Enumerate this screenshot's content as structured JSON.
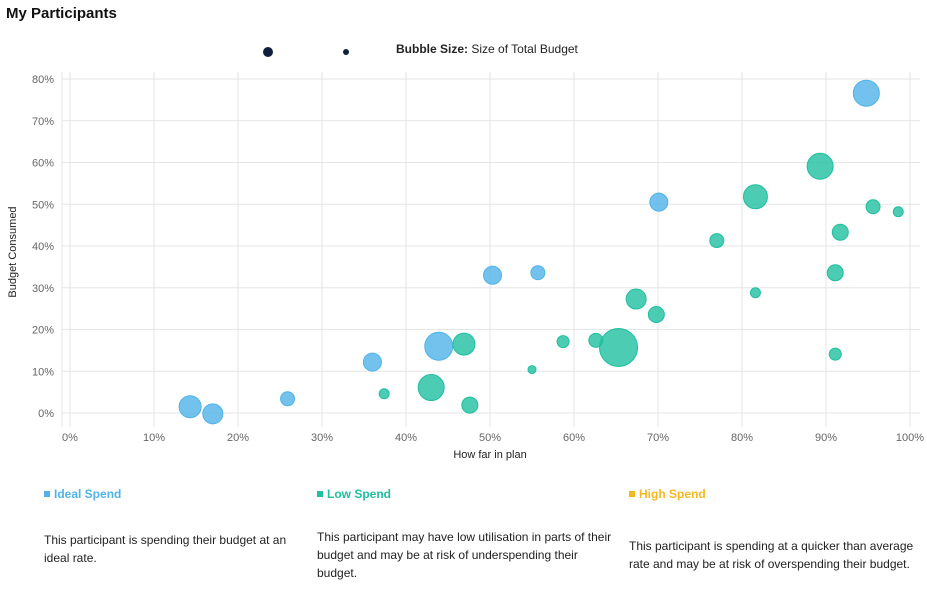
{
  "page": {
    "title": "My Participants"
  },
  "bubble_legend": {
    "label_bold": "Bubble Size:",
    "label_text": "Size of Total Budget"
  },
  "categories": [
    {
      "label": "Ideal Spend",
      "color": "#4fb3e8",
      "description": "This participant is spending their budget at an ideal rate."
    },
    {
      "label": "Low Spend",
      "color": "#1fbf9f",
      "description": "This participant may have low utilisation in parts of their budget and may be at risk of underspending their budget."
    },
    {
      "label": "High Spend",
      "color": "#f5b820",
      "description": "This participant is spending at a quicker than average rate and may be at risk of overspending their budget."
    }
  ],
  "chart_data": {
    "type": "scatter",
    "subtype": "bubble",
    "xlabel": "How far in plan",
    "ylabel": "Budget Consumed",
    "xlim": [
      0,
      100
    ],
    "ylim": [
      0,
      80
    ],
    "x_ticks": [
      "0%",
      "10%",
      "20%",
      "30%",
      "40%",
      "50%",
      "60%",
      "70%",
      "80%",
      "90%",
      "100%"
    ],
    "y_ticks": [
      "0%",
      "10%",
      "20%",
      "30%",
      "40%",
      "50%",
      "60%",
      "70%",
      "80%"
    ],
    "grid": true,
    "series": [
      {
        "name": "Ideal Spend",
        "color": "#4fb3e8",
        "points": [
          {
            "x": 14.3,
            "y": 1.5,
            "size": 11
          },
          {
            "x": 17.0,
            "y": -0.2,
            "size": 10
          },
          {
            "x": 25.9,
            "y": 3.4,
            "size": 7
          },
          {
            "x": 36.0,
            "y": 12.2,
            "size": 9
          },
          {
            "x": 43.9,
            "y": 16.0,
            "size": 14
          },
          {
            "x": 50.3,
            "y": 33.0,
            "size": 9
          },
          {
            "x": 55.7,
            "y": 33.6,
            "size": 7
          },
          {
            "x": 70.1,
            "y": 50.5,
            "size": 9
          },
          {
            "x": 94.8,
            "y": 76.6,
            "size": 13
          }
        ]
      },
      {
        "name": "Low Spend",
        "color": "#1fbf9f",
        "points": [
          {
            "x": 37.4,
            "y": 4.6,
            "size": 5
          },
          {
            "x": 43.0,
            "y": 6.1,
            "size": 13
          },
          {
            "x": 46.9,
            "y": 16.5,
            "size": 11
          },
          {
            "x": 47.6,
            "y": 1.9,
            "size": 8
          },
          {
            "x": 55.0,
            "y": 10.4,
            "size": 4
          },
          {
            "x": 58.7,
            "y": 17.1,
            "size": 6
          },
          {
            "x": 62.6,
            "y": 17.4,
            "size": 7
          },
          {
            "x": 65.3,
            "y": 15.7,
            "size": 19
          },
          {
            "x": 67.4,
            "y": 27.3,
            "size": 10
          },
          {
            "x": 69.8,
            "y": 23.6,
            "size": 8
          },
          {
            "x": 77.0,
            "y": 41.3,
            "size": 7
          },
          {
            "x": 81.6,
            "y": 51.8,
            "size": 12
          },
          {
            "x": 81.6,
            "y": 28.8,
            "size": 5
          },
          {
            "x": 89.3,
            "y": 59.1,
            "size": 13
          },
          {
            "x": 91.1,
            "y": 33.6,
            "size": 8
          },
          {
            "x": 91.1,
            "y": 14.1,
            "size": 6
          },
          {
            "x": 91.7,
            "y": 43.3,
            "size": 8
          },
          {
            "x": 95.6,
            "y": 49.4,
            "size": 7
          },
          {
            "x": 98.6,
            "y": 48.2,
            "size": 5
          }
        ]
      },
      {
        "name": "High Spend",
        "color": "#f5b820",
        "points": []
      }
    ]
  }
}
